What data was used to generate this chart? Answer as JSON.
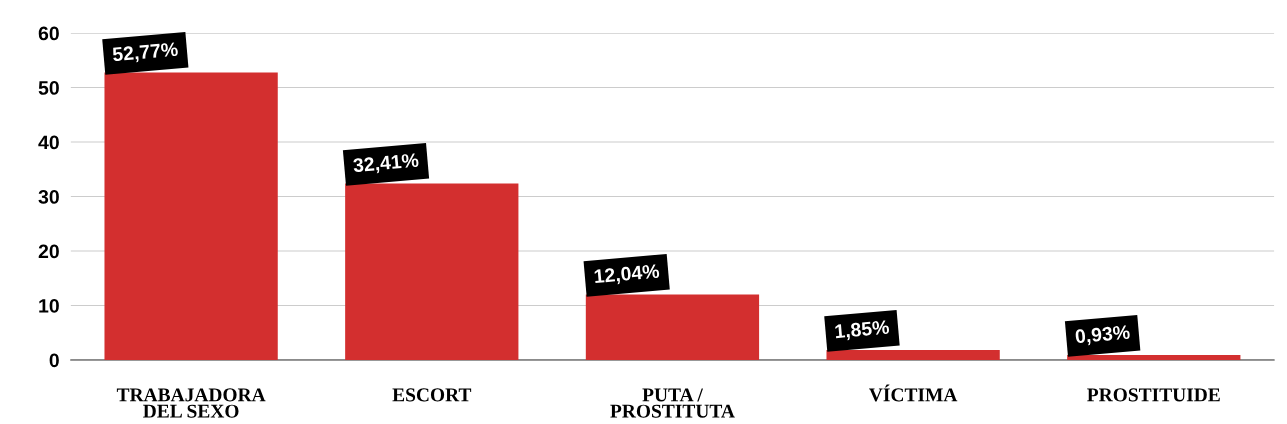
{
  "chart_data": {
    "type": "bar",
    "categories": [
      "TRABAJADORA\nDEL SEXO",
      "ESCORT",
      "PUTA /\nPROSTITUTA",
      "VÍCTIMA",
      "PROSTITUIDE"
    ],
    "values": [
      52.77,
      32.41,
      12.04,
      1.85,
      0.93
    ],
    "value_labels": [
      "52,77%",
      "32,41%",
      "12,04%",
      "1,85%",
      "0,93%"
    ],
    "color": "#d32f2f",
    "ylim": [
      0,
      60
    ],
    "yticks": [
      0,
      10,
      20,
      30,
      40,
      50,
      60
    ],
    "grid": "y",
    "legend": false
  }
}
